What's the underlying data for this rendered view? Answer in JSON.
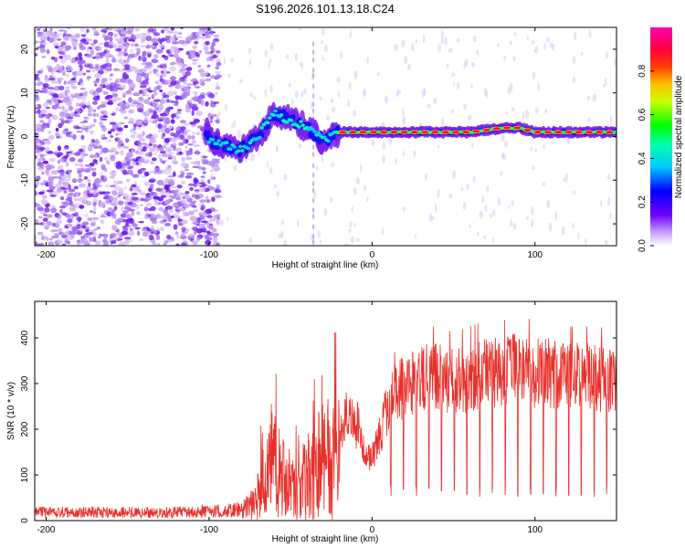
{
  "chart_data": [
    {
      "type": "heatmap",
      "title": "S196.2026.101.13.18.C24",
      "xlabel": "Height of straight line (km)",
      "ylabel": "Frequency (Hz)",
      "xlim": [
        -207,
        150
      ],
      "ylim": [
        -25,
        25
      ],
      "xticks": [
        -200,
        -100,
        0,
        100
      ],
      "yticks": [
        -20,
        -10,
        0,
        10,
        20
      ],
      "colorbar": {
        "label": "Normalized spectral amplitude",
        "range": [
          0,
          1
        ],
        "ticks": [
          0.0,
          0.2,
          0.4,
          0.6,
          0.8
        ],
        "colormap": [
          "#ffffff",
          "#6a00ff",
          "#0000ff",
          "#00ffff",
          "#00ff00",
          "#ffff00",
          "#ff8000",
          "#ff0000",
          "#ff00a0"
        ]
      },
      "ridge": {
        "x": [
          -100,
          -90,
          -80,
          -70,
          -60,
          -50,
          -40,
          -30,
          -20,
          -10,
          0,
          20,
          40,
          60,
          80,
          90,
          100,
          120,
          150
        ],
        "freq": [
          -1,
          -2,
          -3,
          0,
          5,
          4,
          2,
          -1,
          1,
          1,
          1,
          1,
          1,
          1,
          2,
          2,
          1,
          1,
          1
        ]
      },
      "noise_region": [
        -207,
        -100
      ]
    },
    {
      "type": "line",
      "xlabel": "Height of straight line (km)",
      "ylabel": "SNR (10 * v/v)",
      "xlim": [
        -207,
        150
      ],
      "ylim": [
        0,
        480
      ],
      "xticks": [
        -200,
        -100,
        0,
        100
      ],
      "yticks": [
        0,
        100,
        200,
        300,
        400
      ],
      "color": "#e8302a",
      "series": [
        {
          "name": "SNR",
          "x": [
            -207,
            -180,
            -150,
            -120,
            -100,
            -90,
            -80,
            -75,
            -70,
            -65,
            -60,
            -55,
            -50,
            -45,
            -40,
            -35,
            -30,
            -25,
            -20,
            -15,
            -10,
            -5,
            0,
            5,
            10,
            15,
            20,
            30,
            40,
            50,
            60,
            70,
            80,
            90,
            100,
            110,
            120,
            130,
            140,
            150
          ],
          "values": [
            18,
            18,
            18,
            18,
            20,
            22,
            25,
            40,
            70,
            120,
            170,
            120,
            80,
            90,
            120,
            140,
            170,
            150,
            200,
            260,
            220,
            160,
            150,
            200,
            280,
            300,
            320,
            340,
            340,
            330,
            340,
            350,
            350,
            360,
            350,
            350,
            340,
            340,
            340,
            320
          ]
        }
      ]
    }
  ]
}
